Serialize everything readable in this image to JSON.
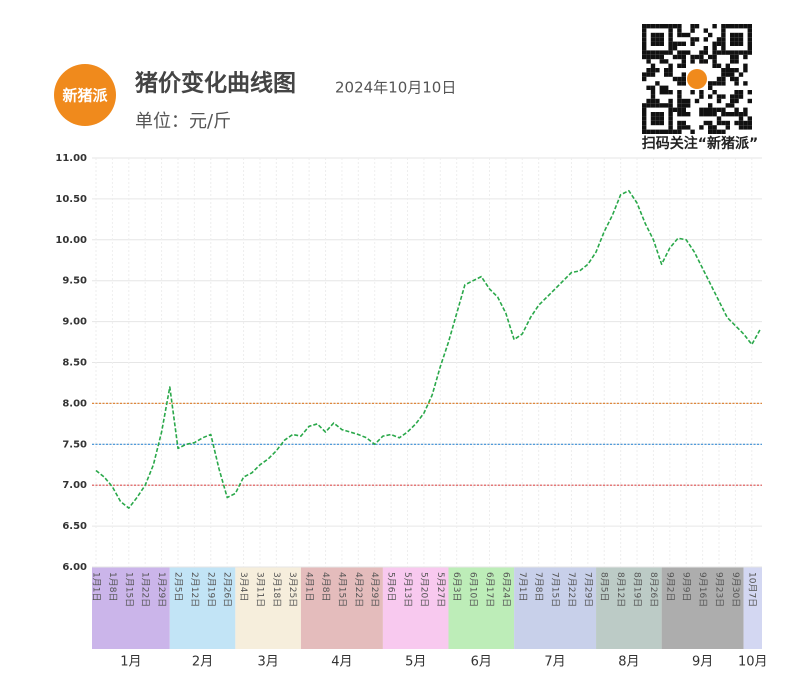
{
  "header": {
    "logo": "新猪派",
    "title": "猪价变化曲线图",
    "date": "2024年10月10日",
    "unit": "单位：元/斤",
    "qr_caption": "扫码关注“新猪派”"
  },
  "chart_data": {
    "type": "line",
    "categories": [
      "1月1日",
      null,
      "1月8日",
      null,
      "1月15日",
      null,
      "1月22日",
      null,
      "1月29日",
      null,
      "2月5日",
      null,
      "2月12日",
      null,
      "2月19日",
      null,
      "2月26日",
      null,
      "3月4日",
      null,
      "3月11日",
      null,
      "3月18日",
      null,
      "3月25日",
      null,
      "4月1日",
      null,
      "4月8日",
      null,
      "4月15日",
      null,
      "4月22日",
      null,
      "4月29日",
      null,
      "5月6日",
      null,
      "5月13日",
      null,
      "5月20日",
      null,
      "5月27日",
      null,
      "6月3日",
      null,
      "6月10日",
      null,
      "6月17日",
      null,
      "6月24日",
      null,
      "7月1日",
      null,
      "7月8日",
      null,
      "7月15日",
      null,
      "7月22日",
      null,
      "7月29日",
      null,
      "8月5日",
      null,
      "8月12日",
      null,
      "8月19日",
      null,
      "8月26日",
      null,
      "9月2日",
      null,
      "9月9日",
      null,
      "9月16日",
      null,
      "9月23日",
      null,
      "9月30日",
      null,
      "10月7日",
      null
    ],
    "series": [
      {
        "color": "#2aa84a",
        "values": [
          7.18,
          7.1,
          6.98,
          6.8,
          6.72,
          6.85,
          7.0,
          7.25,
          7.65,
          8.2,
          7.45,
          7.5,
          7.52,
          7.58,
          7.62,
          7.2,
          6.85,
          6.9,
          7.1,
          7.15,
          7.25,
          7.32,
          7.42,
          7.55,
          7.62,
          7.6,
          7.72,
          7.75,
          7.65,
          7.76,
          7.68,
          7.65,
          7.62,
          7.58,
          7.5,
          7.6,
          7.62,
          7.58,
          7.65,
          7.75,
          7.88,
          8.1,
          8.45,
          8.75,
          9.1,
          9.45,
          9.5,
          9.55,
          9.4,
          9.3,
          9.1,
          8.78,
          8.85,
          9.05,
          9.2,
          9.3,
          9.4,
          9.5,
          9.6,
          9.62,
          9.7,
          9.85,
          10.1,
          10.3,
          10.55,
          10.6,
          10.45,
          10.2,
          10.0,
          9.7,
          9.9,
          10.02,
          10.0,
          9.85,
          9.65,
          9.45,
          9.25,
          9.05,
          8.95,
          8.85,
          8.72,
          8.9
        ]
      }
    ],
    "ylim": [
      6,
      11
    ],
    "yticks": [
      {
        "value": 6,
        "label": "6.00"
      },
      {
        "value": 6.5,
        "label": "6.50"
      },
      {
        "value": 7,
        "label": "7.00"
      },
      {
        "value": 7.5,
        "label": "7.50"
      },
      {
        "value": 8,
        "label": "8.00"
      },
      {
        "value": 8.5,
        "label": "8.50"
      },
      {
        "value": 9,
        "label": "9.00"
      },
      {
        "value": 9.5,
        "label": "9.50"
      },
      {
        "value": 10,
        "label": "10.00"
      },
      {
        "value": 10.5,
        "label": "10.50"
      },
      {
        "value": 11,
        "label": "11.00"
      }
    ],
    "grid": true,
    "reference_lines": [
      {
        "value": 8,
        "color": "#e0873a"
      },
      {
        "value": 7.5,
        "color": "#3a8fd8"
      },
      {
        "value": 7,
        "color": "#e05050"
      }
    ],
    "months": [
      {
        "label": "1月",
        "color": "#cbb5ea"
      },
      {
        "label": "2月",
        "color": "#c2e4f6"
      },
      {
        "label": "3月",
        "color": "#f6eedc"
      },
      {
        "label": "4月",
        "color": "#e4bcbc"
      },
      {
        "label": "5月",
        "color": "#f8c9ef"
      },
      {
        "label": "6月",
        "color": "#bdedb8"
      },
      {
        "label": "7月",
        "color": "#c8d0ea"
      },
      {
        "label": "8月",
        "color": "#bccbc6"
      },
      {
        "label": "9月",
        "color": "#adadad"
      },
      {
        "label": "10月",
        "color": "#d3d7f2"
      }
    ]
  }
}
